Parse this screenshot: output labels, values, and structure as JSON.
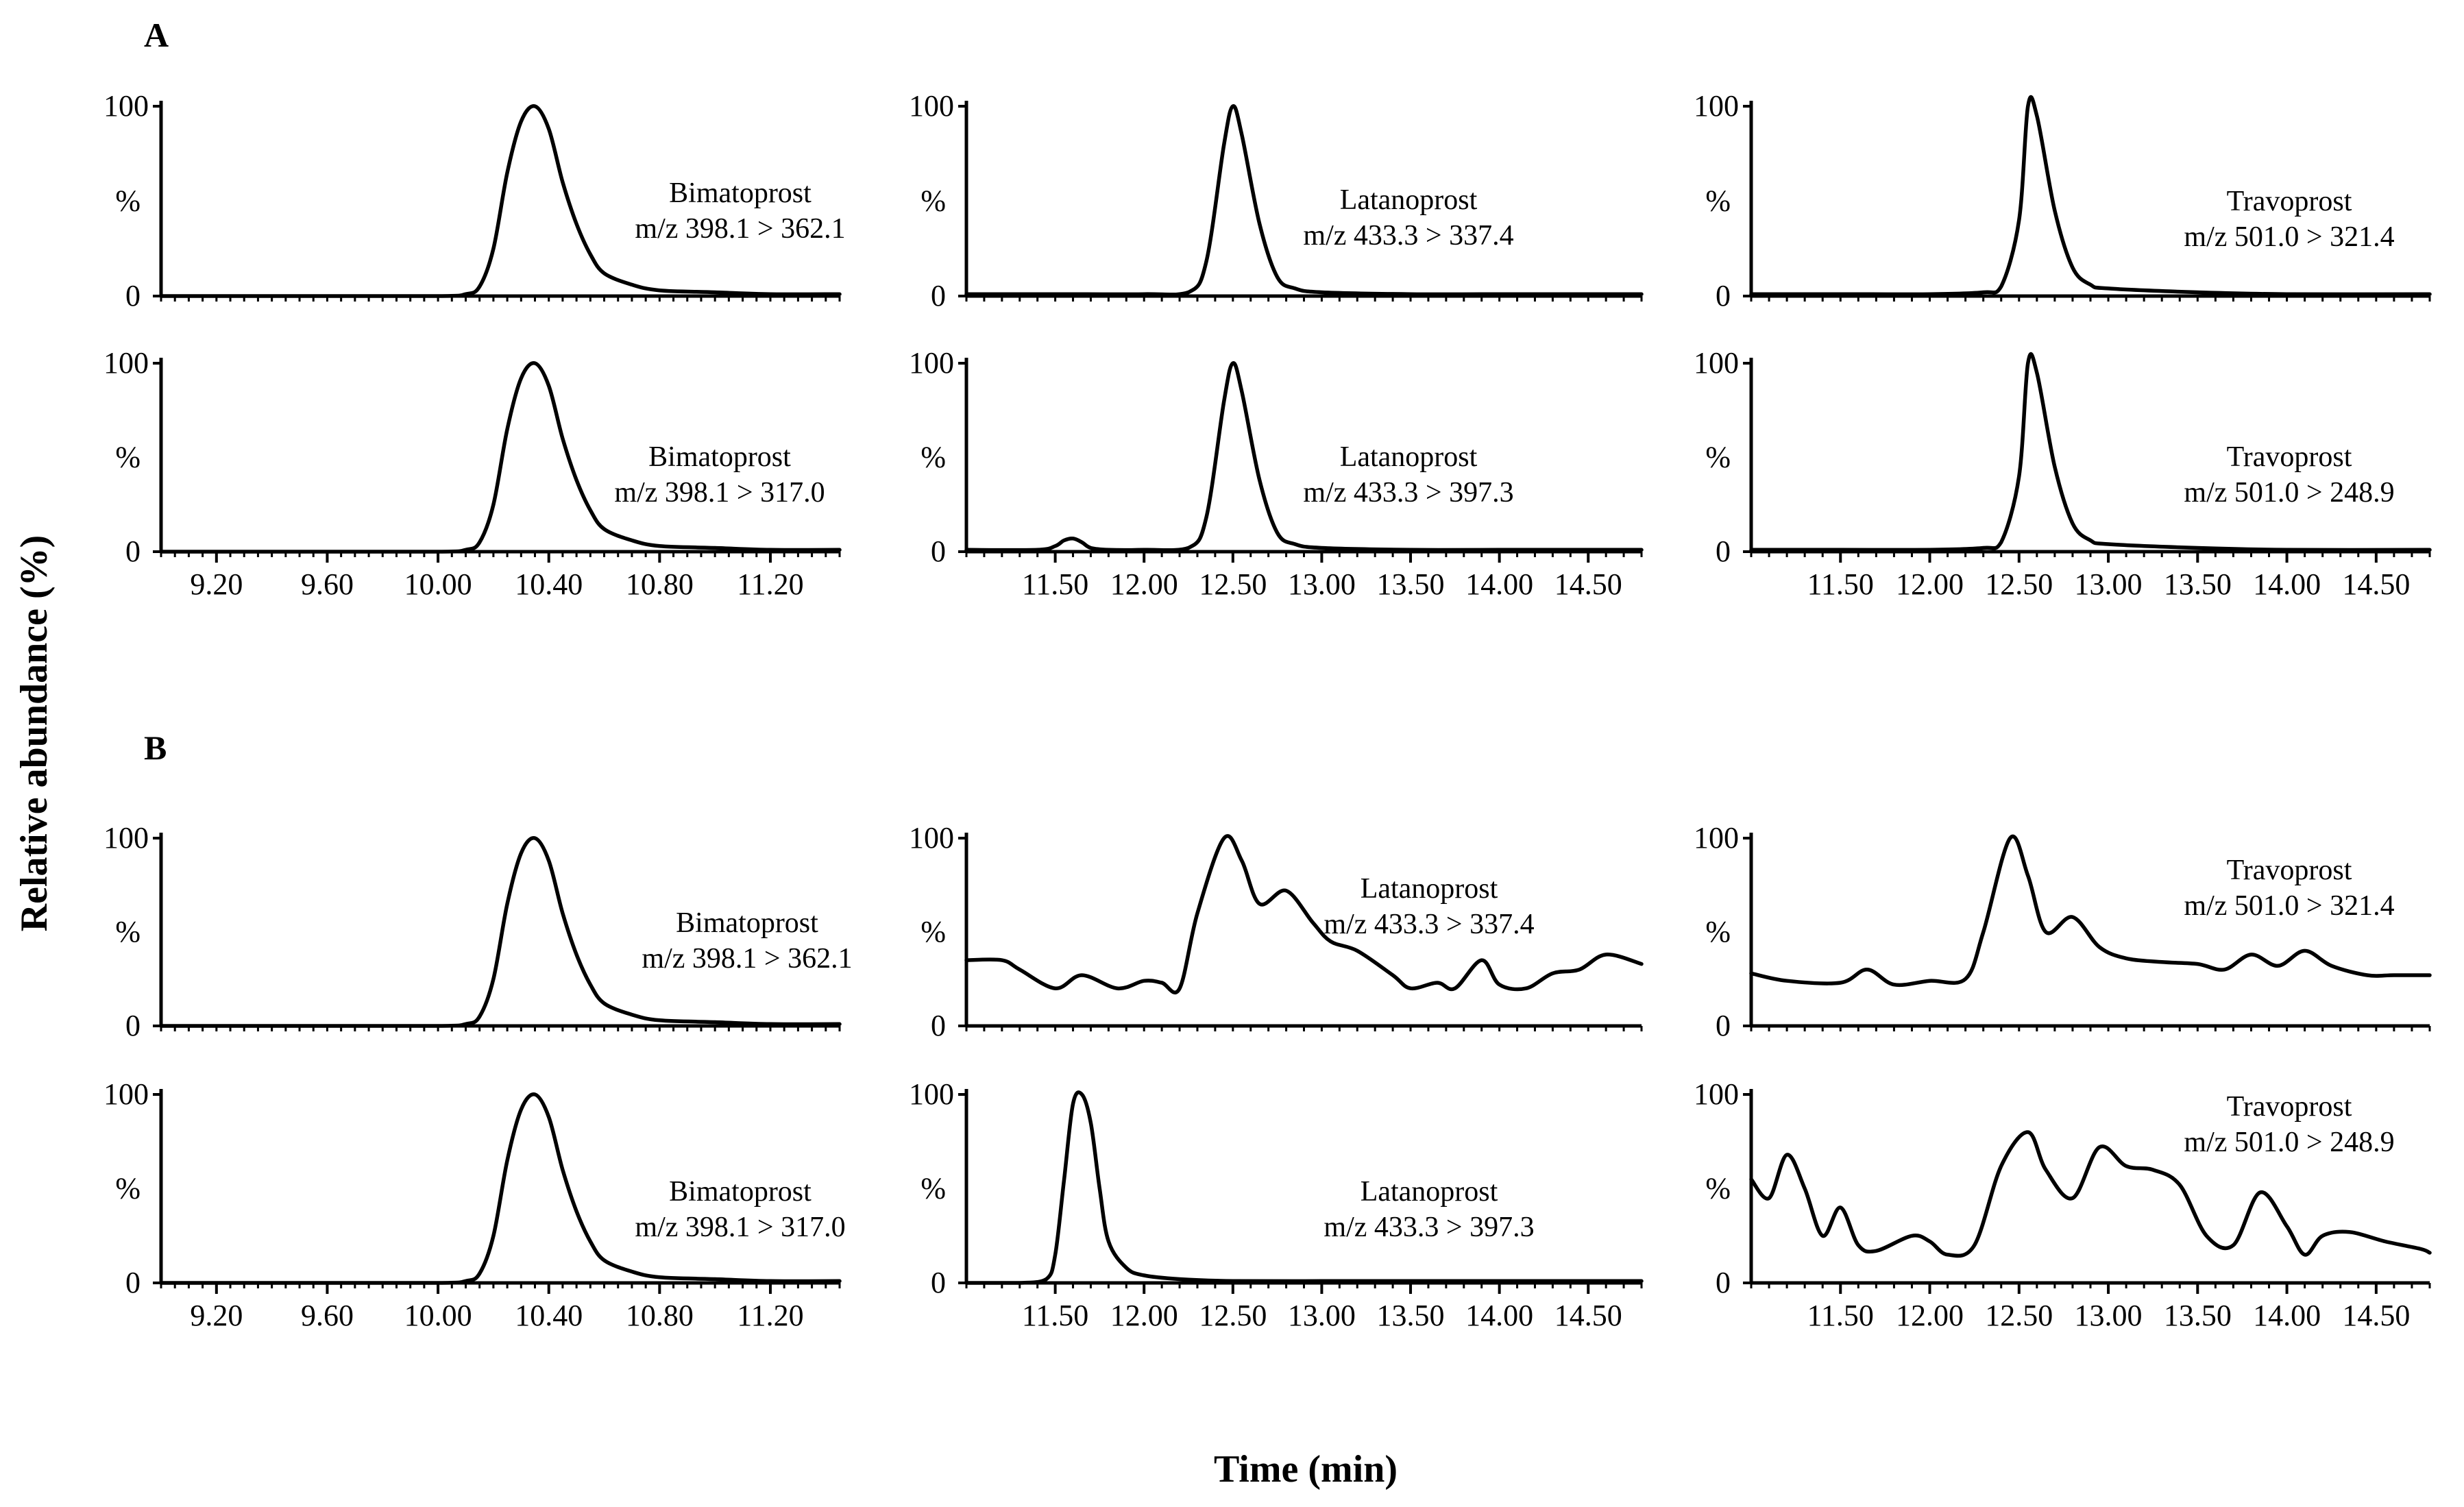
{
  "figure": {
    "panel_labels": [
      "A",
      "B"
    ],
    "ylabel": "Relative abundance (%)",
    "xlabel": "Time (min)"
  },
  "chart_data": [
    {
      "id": "A1",
      "panel": "A",
      "type": "line",
      "compound": "Bimatoprost",
      "transition": "m/z 398.1 > 362.1",
      "xlim": [
        9.0,
        11.45
      ],
      "ylim": [
        0,
        100
      ],
      "yticks": [
        "0",
        "%",
        "100"
      ],
      "xticks": [],
      "series": [
        {
          "name": "Bimatoprost m/z 398.1 > 362.1",
          "x": [
            9.0,
            9.5,
            10.0,
            10.1,
            10.15,
            10.2,
            10.25,
            10.3,
            10.35,
            10.4,
            10.45,
            10.5,
            10.55,
            10.6,
            10.7,
            10.8,
            11.0,
            11.2,
            11.45
          ],
          "y": [
            0,
            0,
            0,
            1,
            5,
            25,
            65,
            92,
            100,
            88,
            60,
            38,
            22,
            12,
            6,
            3,
            2,
            1,
            1
          ]
        }
      ]
    },
    {
      "id": "A2",
      "panel": "A",
      "type": "line",
      "compound": "Latanoprost",
      "transition": "m/z 433.3 > 337.4",
      "xlim": [
        11.0,
        14.8
      ],
      "ylim": [
        0,
        100
      ],
      "yticks": [
        "0",
        "%",
        "100"
      ],
      "xticks": [],
      "series": [
        {
          "name": "Latanoprost m/z 433.3 > 337.4",
          "x": [
            11.0,
            11.5,
            12.0,
            12.25,
            12.35,
            12.45,
            12.5,
            12.55,
            12.65,
            12.75,
            12.85,
            13.0,
            13.5,
            14.0,
            14.8
          ],
          "y": [
            1,
            1,
            1,
            2,
            18,
            80,
            100,
            85,
            38,
            10,
            4,
            2,
            1,
            1,
            1
          ]
        }
      ]
    },
    {
      "id": "A3",
      "panel": "A",
      "type": "line",
      "compound": "Travoprost",
      "transition": "m/z 501.0 > 321.4",
      "xlim": [
        11.0,
        14.8
      ],
      "ylim": [
        0,
        100
      ],
      "yticks": [
        "0",
        "%",
        "100"
      ],
      "xticks": [],
      "series": [
        {
          "name": "Travoprost m/z 501.0 > 321.4",
          "x": [
            11.0,
            11.5,
            12.0,
            12.3,
            12.4,
            12.5,
            12.55,
            12.6,
            12.7,
            12.8,
            12.9,
            13.0,
            13.5,
            14.0,
            14.8
          ],
          "y": [
            1,
            1,
            1,
            2,
            5,
            40,
            100,
            95,
            45,
            15,
            6,
            4,
            2,
            1,
            1
          ]
        }
      ]
    },
    {
      "id": "A4",
      "panel": "A",
      "type": "line",
      "compound": "Bimatoprost",
      "transition": "m/z 398.1 > 317.0",
      "xlim": [
        9.0,
        11.45
      ],
      "ylim": [
        0,
        100
      ],
      "yticks": [
        "0",
        "%",
        "100"
      ],
      "xticks": [
        {
          "value": 9.2,
          "label": "9.20"
        },
        {
          "value": 9.6,
          "label": "9.60"
        },
        {
          "value": 10.0,
          "label": "10.00"
        },
        {
          "value": 10.4,
          "label": "10.40"
        },
        {
          "value": 10.8,
          "label": "10.80"
        },
        {
          "value": 11.2,
          "label": "11.20"
        }
      ],
      "series": [
        {
          "name": "Bimatoprost m/z 398.1 > 317.0",
          "x": [
            9.0,
            9.5,
            10.0,
            10.1,
            10.15,
            10.2,
            10.25,
            10.3,
            10.35,
            10.4,
            10.45,
            10.5,
            10.55,
            10.6,
            10.7,
            10.8,
            11.0,
            11.2,
            11.45
          ],
          "y": [
            0,
            0,
            0,
            1,
            5,
            25,
            65,
            92,
            100,
            88,
            60,
            38,
            22,
            12,
            6,
            3,
            2,
            1,
            1
          ]
        }
      ]
    },
    {
      "id": "A5",
      "panel": "A",
      "type": "line",
      "compound": "Latanoprost",
      "transition": "m/z 433.3 > 397.3",
      "xlim": [
        11.0,
        14.8
      ],
      "ylim": [
        0,
        100
      ],
      "yticks": [
        "0",
        "%",
        "100"
      ],
      "xticks": [
        {
          "value": 11.5,
          "label": "11.50"
        },
        {
          "value": 12.0,
          "label": "12.00"
        },
        {
          "value": 12.5,
          "label": "12.50"
        },
        {
          "value": 13.0,
          "label": "13.00"
        },
        {
          "value": 13.5,
          "label": "13.50"
        },
        {
          "value": 14.0,
          "label": "14.00"
        },
        {
          "value": 14.5,
          "label": "14.50"
        }
      ],
      "series": [
        {
          "name": "Latanoprost m/z 433.3 > 397.3",
          "x": [
            11.0,
            11.4,
            11.5,
            11.55,
            11.6,
            11.65,
            11.7,
            11.8,
            12.0,
            12.25,
            12.35,
            12.45,
            12.5,
            12.55,
            12.65,
            12.75,
            12.85,
            13.0,
            13.5,
            14.0,
            14.8
          ],
          "y": [
            1,
            1,
            3,
            6,
            7,
            5,
            2,
            1,
            1,
            2,
            18,
            80,
            100,
            85,
            38,
            10,
            4,
            2,
            1,
            1,
            1
          ]
        }
      ]
    },
    {
      "id": "A6",
      "panel": "A",
      "type": "line",
      "compound": "Travoprost",
      "transition": "m/z 501.0 > 248.9",
      "xlim": [
        11.0,
        14.8
      ],
      "ylim": [
        0,
        100
      ],
      "yticks": [
        "0",
        "%",
        "100"
      ],
      "xticks": [
        {
          "value": 11.5,
          "label": "11.50"
        },
        {
          "value": 12.0,
          "label": "12.00"
        },
        {
          "value": 12.5,
          "label": "12.50"
        },
        {
          "value": 13.0,
          "label": "13.00"
        },
        {
          "value": 13.5,
          "label": "13.50"
        },
        {
          "value": 14.0,
          "label": "14.00"
        },
        {
          "value": 14.5,
          "label": "14.50"
        }
      ],
      "series": [
        {
          "name": "Travoprost m/z 501.0 > 248.9",
          "x": [
            11.0,
            11.5,
            12.0,
            12.3,
            12.4,
            12.5,
            12.55,
            12.6,
            12.7,
            12.8,
            12.9,
            13.0,
            13.5,
            14.0,
            14.8
          ],
          "y": [
            1,
            1,
            1,
            2,
            5,
            40,
            100,
            95,
            45,
            15,
            6,
            4,
            2,
            1,
            1
          ]
        }
      ]
    },
    {
      "id": "B1",
      "panel": "B",
      "type": "line",
      "compound": "Bimatoprost",
      "transition": "m/z 398.1 > 362.1",
      "xlim": [
        9.0,
        11.45
      ],
      "ylim": [
        0,
        100
      ],
      "yticks": [
        "0",
        "%",
        "100"
      ],
      "xticks": [],
      "series": [
        {
          "name": "Bimatoprost m/z 398.1 > 362.1",
          "x": [
            9.0,
            9.5,
            10.0,
            10.1,
            10.15,
            10.2,
            10.25,
            10.3,
            10.35,
            10.4,
            10.45,
            10.5,
            10.55,
            10.6,
            10.7,
            10.8,
            11.0,
            11.2,
            11.45
          ],
          "y": [
            0,
            0,
            0,
            1,
            5,
            25,
            65,
            92,
            100,
            88,
            60,
            38,
            22,
            12,
            6,
            3,
            2,
            1,
            1
          ]
        }
      ]
    },
    {
      "id": "B2",
      "panel": "B",
      "type": "line",
      "compound": "Latanoprost",
      "transition": "m/z 433.3 > 337.4",
      "xlim": [
        11.0,
        14.8
      ],
      "ylim": [
        0,
        100
      ],
      "yticks": [
        "0",
        "%",
        "100"
      ],
      "xticks": [],
      "series": [
        {
          "name": "Latanoprost m/z 433.3 > 337.4",
          "x": [
            11.0,
            11.2,
            11.3,
            11.5,
            11.65,
            11.85,
            12.0,
            12.1,
            12.2,
            12.3,
            12.45,
            12.55,
            12.65,
            12.8,
            12.95,
            13.05,
            13.2,
            13.4,
            13.5,
            13.65,
            13.75,
            13.9,
            14.0,
            14.15,
            14.3,
            14.45,
            14.6,
            14.8
          ],
          "y": [
            35,
            35,
            30,
            20,
            27,
            20,
            24,
            23,
            20,
            60,
            100,
            88,
            65,
            72,
            55,
            45,
            40,
            27,
            20,
            23,
            20,
            35,
            22,
            20,
            28,
            30,
            38,
            33
          ]
        }
      ]
    },
    {
      "id": "B3",
      "panel": "B",
      "type": "line",
      "compound": "Travoprost",
      "transition": "m/z 501.0 > 321.4",
      "xlim": [
        11.0,
        14.8
      ],
      "ylim": [
        0,
        100
      ],
      "yticks": [
        "0",
        "%",
        "100"
      ],
      "xticks": [],
      "series": [
        {
          "name": "Travoprost m/z 501.0 > 321.4",
          "x": [
            11.0,
            11.2,
            11.5,
            11.65,
            11.8,
            12.0,
            12.2,
            12.3,
            12.45,
            12.55,
            12.65,
            12.8,
            12.95,
            13.1,
            13.3,
            13.5,
            13.65,
            13.8,
            13.95,
            14.1,
            14.25,
            14.45,
            14.6,
            14.8
          ],
          "y": [
            28,
            24,
            23,
            30,
            22,
            24,
            25,
            50,
            100,
            80,
            50,
            58,
            42,
            36,
            34,
            33,
            30,
            38,
            32,
            40,
            32,
            27,
            27,
            27
          ]
        }
      ]
    },
    {
      "id": "B4",
      "panel": "B",
      "type": "line",
      "compound": "Bimatoprost",
      "transition": "m/z 398.1 > 317.0",
      "xlim": [
        9.0,
        11.45
      ],
      "ylim": [
        0,
        100
      ],
      "yticks": [
        "0",
        "%",
        "100"
      ],
      "xticks": [
        {
          "value": 9.2,
          "label": "9.20"
        },
        {
          "value": 9.6,
          "label": "9.60"
        },
        {
          "value": 10.0,
          "label": "10.00"
        },
        {
          "value": 10.4,
          "label": "10.40"
        },
        {
          "value": 10.8,
          "label": "10.80"
        },
        {
          "value": 11.2,
          "label": "11.20"
        }
      ],
      "series": [
        {
          "name": "Bimatoprost m/z 398.1 > 317.0",
          "x": [
            9.0,
            9.5,
            10.0,
            10.1,
            10.15,
            10.2,
            10.25,
            10.3,
            10.35,
            10.4,
            10.45,
            10.5,
            10.55,
            10.6,
            10.7,
            10.8,
            11.0,
            11.2,
            11.45
          ],
          "y": [
            0,
            0,
            0,
            1,
            5,
            25,
            65,
            92,
            100,
            88,
            60,
            38,
            22,
            12,
            6,
            3,
            2,
            1,
            1
          ]
        }
      ]
    },
    {
      "id": "B5",
      "panel": "B",
      "type": "line",
      "compound": "Latanoprost",
      "transition": "m/z 433.3 > 397.3",
      "xlim": [
        11.0,
        14.8
      ],
      "ylim": [
        0,
        100
      ],
      "yticks": [
        "0",
        "%",
        "100"
      ],
      "xticks": [
        {
          "value": 11.5,
          "label": "11.50"
        },
        {
          "value": 12.0,
          "label": "12.00"
        },
        {
          "value": 12.5,
          "label": "12.50"
        },
        {
          "value": 13.0,
          "label": "13.00"
        },
        {
          "value": 13.5,
          "label": "13.50"
        },
        {
          "value": 14.0,
          "label": "14.00"
        },
        {
          "value": 14.5,
          "label": "14.50"
        }
      ],
      "series": [
        {
          "name": "Latanoprost m/z 433.3 > 397.3",
          "x": [
            11.0,
            11.3,
            11.45,
            11.5,
            11.55,
            11.6,
            11.65,
            11.7,
            11.75,
            11.8,
            11.9,
            12.0,
            12.2,
            12.5,
            13.0,
            13.5,
            14.0,
            14.8
          ],
          "y": [
            0,
            0,
            2,
            15,
            55,
            95,
            100,
            85,
            50,
            22,
            8,
            4,
            2,
            1,
            1,
            1,
            1,
            1
          ]
        }
      ]
    },
    {
      "id": "B6",
      "panel": "B",
      "type": "line",
      "compound": "Travoprost",
      "transition": "m/z 501.0 > 248.9",
      "xlim": [
        11.0,
        14.8
      ],
      "ylim": [
        0,
        100
      ],
      "yticks": [
        "0",
        "%",
        "100"
      ],
      "xticks": [
        {
          "value": 11.5,
          "label": "11.50"
        },
        {
          "value": 12.0,
          "label": "12.00"
        },
        {
          "value": 12.5,
          "label": "12.50"
        },
        {
          "value": 13.0,
          "label": "13.00"
        },
        {
          "value": 13.5,
          "label": "13.50"
        },
        {
          "value": 14.0,
          "label": "14.00"
        },
        {
          "value": 14.5,
          "label": "14.50"
        }
      ],
      "series": [
        {
          "name": "Travoprost m/z 501.0 > 248.9",
          "x": [
            11.0,
            11.1,
            11.2,
            11.3,
            11.4,
            11.5,
            11.6,
            11.7,
            11.9,
            12.0,
            12.1,
            12.25,
            12.4,
            12.55,
            12.65,
            12.8,
            12.95,
            13.1,
            13.25,
            13.4,
            13.55,
            13.7,
            13.85,
            14.0,
            14.1,
            14.2,
            14.35,
            14.55,
            14.75,
            14.8
          ],
          "y": [
            55,
            45,
            68,
            50,
            25,
            40,
            20,
            17,
            25,
            22,
            15,
            20,
            62,
            80,
            60,
            45,
            72,
            62,
            60,
            52,
            25,
            20,
            48,
            30,
            15,
            25,
            27,
            22,
            18,
            16
          ]
        }
      ]
    }
  ]
}
